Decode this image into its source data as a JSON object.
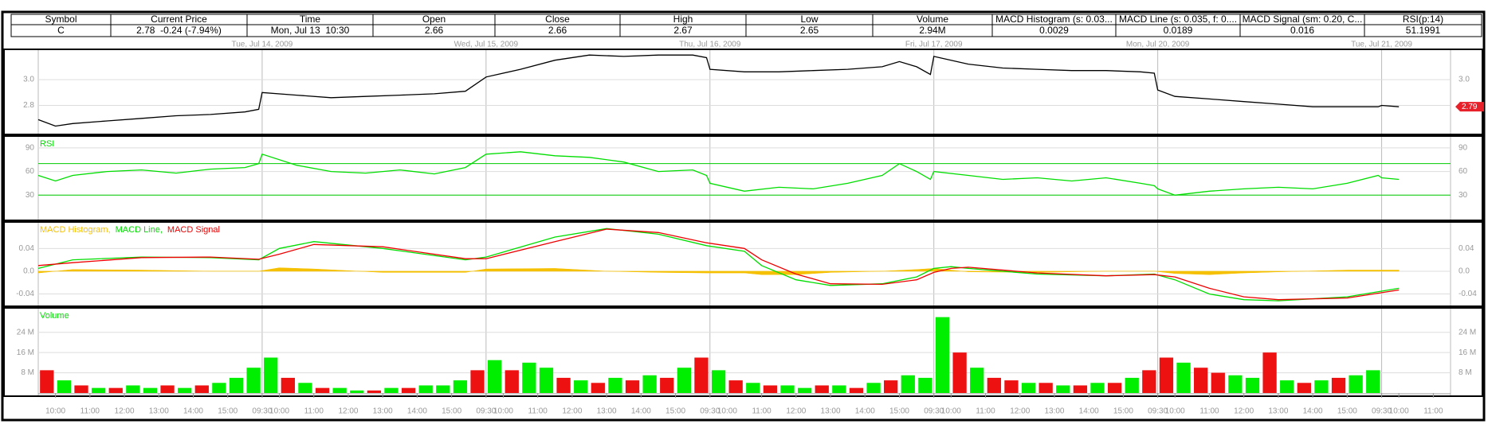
{
  "quote_table": {
    "headers": [
      "Symbol",
      "Current Price",
      "Time",
      "Open",
      "Close",
      "High",
      "Low",
      "Volume",
      "MACD Histogram (s: 0.03...",
      "MACD Line (s: 0.035, f: 0....",
      "MACD Signal (sm: 0.20, C...",
      "RSI(p:14)"
    ],
    "row": [
      "C",
      "2.78  -0.24 (-7.94%)",
      "Mon, Jul 13  10:30",
      "2.66",
      "2.66",
      "2.67",
      "2.65",
      "2.94M",
      "0.0029",
      "0.0189",
      "0.016",
      "51.1991"
    ]
  },
  "chart_data": [
    {
      "type": "line",
      "color": "#000000",
      "xlim": [
        0,
        41
      ],
      "ylim": [
        2.6,
        3.21
      ],
      "yticks": [
        2.8,
        {
          "value": 3,
          "label": "3.0"
        }
      ],
      "xticks": [
        {
          "value": 6.5,
          "label": "Tue, Jul 14, 2009"
        },
        {
          "value": 13,
          "label": "Wed, Jul 15, 2009"
        },
        {
          "value": 19.5,
          "label": "Thu, Jul 16, 2009"
        },
        {
          "value": 26,
          "label": "Fri, Jul 17, 2009"
        },
        {
          "value": 32.5,
          "label": "Mon, Jul 20, 2009"
        },
        {
          "value": 39,
          "label": "Tue, Jul 21, 2009"
        }
      ],
      "last_label": 2.79,
      "last_color": "#e8202a",
      "x": [
        0,
        0.5,
        1,
        2,
        3,
        4,
        5,
        6,
        6.4,
        6.5,
        7.5,
        8.5,
        9.5,
        10.5,
        11.5,
        12.4,
        13,
        14,
        15,
        16,
        17,
        18,
        19,
        19.4,
        19.5,
        20.5,
        21.5,
        22.5,
        23.5,
        24.5,
        25,
        25.5,
        25.9,
        26,
        27,
        28,
        29,
        30,
        31,
        32,
        32.4,
        32.5,
        33,
        34,
        35,
        36,
        37,
        38,
        38.9,
        39,
        39.5
      ],
      "values": [
        2.69,
        2.64,
        2.66,
        2.68,
        2.7,
        2.72,
        2.73,
        2.75,
        2.77,
        2.9,
        2.88,
        2.86,
        2.87,
        2.88,
        2.89,
        2.91,
        3.02,
        3.08,
        3.15,
        3.19,
        3.18,
        3.19,
        3.19,
        3.17,
        3.08,
        3.06,
        3.06,
        3.07,
        3.08,
        3.1,
        3.14,
        3.1,
        3.04,
        3.18,
        3.12,
        3.09,
        3.08,
        3.07,
        3.07,
        3.06,
        3.05,
        2.92,
        2.87,
        2.85,
        2.83,
        2.81,
        2.79,
        2.79,
        2.79,
        2.8,
        2.79
      ]
    },
    {
      "type": "line",
      "title": "RSI",
      "color": "#00dd00",
      "xlim": [
        0,
        41
      ],
      "ylim": [
        2,
        101
      ],
      "yticks": [
        30,
        60,
        90
      ],
      "levels": [
        70,
        30
      ],
      "level_color": "#00cc00",
      "x": [
        0,
        0.5,
        1,
        2,
        3,
        4,
        5,
        6,
        6.4,
        6.5,
        7.5,
        8.5,
        9.5,
        10.5,
        11.5,
        12.4,
        13,
        14,
        15,
        16,
        17,
        18,
        19,
        19.4,
        19.5,
        20.5,
        21.5,
        22.5,
        23.5,
        24.5,
        25,
        25.5,
        25.9,
        26,
        27,
        28,
        29,
        30,
        31,
        32,
        32.4,
        32.5,
        33,
        34,
        35,
        36,
        37,
        38,
        38.9,
        39,
        39.5
      ],
      "values": [
        55,
        48,
        55,
        60,
        62,
        58,
        63,
        65,
        70,
        82,
        68,
        60,
        58,
        62,
        57,
        65,
        82,
        85,
        80,
        78,
        72,
        60,
        62,
        55,
        45,
        35,
        40,
        38,
        45,
        55,
        70,
        60,
        50,
        60,
        55,
        50,
        52,
        48,
        52,
        45,
        42,
        38,
        30,
        35,
        38,
        40,
        38,
        45,
        55,
        52,
        50
      ]
    },
    {
      "type": "line",
      "xlim": [
        0,
        41
      ],
      "ylim": [
        -0.056,
        0.081
      ],
      "yticks": [
        -0.04,
        {
          "value": 0,
          "label": "0.0"
        },
        0.04
      ],
      "x": [
        0,
        1,
        3,
        5,
        6.4,
        7,
        8,
        10,
        12.4,
        13,
        15,
        16.5,
        18,
        19.4,
        20.5,
        21,
        22,
        23,
        24.5,
        25.5,
        26,
        26.5,
        27,
        29,
        31,
        32.4,
        33,
        34,
        35,
        36,
        38,
        39.5
      ],
      "series": [
        {
          "name": "MACD Histogram,",
          "color": "#f5c000",
          "style": "area",
          "values": [
            -0.003,
            0.003,
            0.002,
            0,
            0,
            0.006,
            0.004,
            -0.002,
            -0.002,
            0.004,
            0.005,
            0,
            -0.002,
            -0.003,
            -0.003,
            -0.006,
            -0.006,
            -0.002,
            0,
            0.003,
            0.005,
            0.002,
            -0.001,
            -0.002,
            0,
            0,
            -0.004,
            -0.006,
            -0.003,
            -0.001,
            0.002,
            0.002
          ]
        },
        {
          "name": "MACD Line,",
          "color": "#00dd00",
          "values": [
            0.005,
            0.02,
            0.025,
            0.024,
            0.02,
            0.04,
            0.052,
            0.04,
            0.02,
            0.025,
            0.06,
            0.075,
            0.065,
            0.045,
            0.035,
            0.01,
            -0.015,
            -0.025,
            -0.022,
            -0.01,
            0.005,
            0.008,
            0.005,
            -0.005,
            -0.008,
            -0.005,
            -0.015,
            -0.04,
            -0.05,
            -0.052,
            -0.045,
            -0.03
          ]
        },
        {
          "name": "MACD Signal",
          "color": "#ee0000",
          "values": [
            0.01,
            0.015,
            0.024,
            0.025,
            0.021,
            0.03,
            0.047,
            0.043,
            0.022,
            0.022,
            0.052,
            0.074,
            0.068,
            0.05,
            0.04,
            0.02,
            -0.005,
            -0.022,
            -0.023,
            -0.015,
            -0.002,
            0.005,
            0.007,
            -0.003,
            -0.008,
            -0.006,
            -0.01,
            -0.03,
            -0.045,
            -0.05,
            -0.047,
            -0.033
          ]
        }
      ]
    },
    {
      "type": "bar",
      "title": "Volume",
      "title_color": "#00dd00",
      "xlim": [
        0,
        41
      ],
      "ylim": [
        0,
        32.4
      ],
      "yticks": [
        {
          "value": 8,
          "label": "8 M"
        },
        {
          "value": 16,
          "label": "16 M"
        },
        {
          "value": 24,
          "label": "24 M"
        }
      ],
      "up_color": "#00ee00",
      "down_color": "#ee1111",
      "xticks": [
        {
          "value": 0.5,
          "label": "10:00"
        },
        {
          "value": 1.5,
          "label": "11:00"
        },
        {
          "value": 2.5,
          "label": "12:00"
        },
        {
          "value": 3.5,
          "label": "13:00"
        },
        {
          "value": 4.5,
          "label": "14:00"
        },
        {
          "value": 5.5,
          "label": "15:00"
        },
        {
          "value": 6.5,
          "label": "09:30"
        },
        {
          "value": 7,
          "label": "10:00"
        },
        {
          "value": 8,
          "label": "11:00"
        },
        {
          "value": 9,
          "label": "12:00"
        },
        {
          "value": 10,
          "label": "13:00"
        },
        {
          "value": 11,
          "label": "14:00"
        },
        {
          "value": 12,
          "label": "15:00"
        },
        {
          "value": 13,
          "label": "09:30"
        },
        {
          "value": 13.5,
          "label": "10:00"
        },
        {
          "value": 14.5,
          "label": "11:00"
        },
        {
          "value": 15.5,
          "label": "12:00"
        },
        {
          "value": 16.5,
          "label": "13:00"
        },
        {
          "value": 17.5,
          "label": "14:00"
        },
        {
          "value": 18.5,
          "label": "15:00"
        },
        {
          "value": 19.5,
          "label": "09:30"
        },
        {
          "value": 20,
          "label": "10:00"
        },
        {
          "value": 21,
          "label": "11:00"
        },
        {
          "value": 22,
          "label": "12:00"
        },
        {
          "value": 23,
          "label": "13:00"
        },
        {
          "value": 24,
          "label": "14:00"
        },
        {
          "value": 25,
          "label": "15:00"
        },
        {
          "value": 26,
          "label": "09:30"
        },
        {
          "value": 26.5,
          "label": "10:00"
        },
        {
          "value": 27.5,
          "label": "11:00"
        },
        {
          "value": 28.5,
          "label": "12:00"
        },
        {
          "value": 29.5,
          "label": "13:00"
        },
        {
          "value": 30.5,
          "label": "14:00"
        },
        {
          "value": 31.5,
          "label": "15:00"
        },
        {
          "value": 32.5,
          "label": "09:30"
        },
        {
          "value": 33,
          "label": "10:00"
        },
        {
          "value": 34,
          "label": "11:00"
        },
        {
          "value": 35,
          "label": "12:00"
        },
        {
          "value": 36,
          "label": "13:00"
        },
        {
          "value": 37,
          "label": "14:00"
        },
        {
          "value": 38,
          "label": "15:00"
        },
        {
          "value": 39,
          "label": "09:30"
        },
        {
          "value": 39.5,
          "label": "10:00"
        },
        {
          "value": 40.5,
          "label": "11:00"
        }
      ],
      "x": [
        0.25,
        0.75,
        1.25,
        1.75,
        2.25,
        2.75,
        3.25,
        3.75,
        4.25,
        4.75,
        5.25,
        5.75,
        6.25,
        6.75,
        7.25,
        7.75,
        8.25,
        8.75,
        9.25,
        9.75,
        10.25,
        10.75,
        11.25,
        11.75,
        12.25,
        12.75,
        13.25,
        13.75,
        14.25,
        14.75,
        15.25,
        15.75,
        16.25,
        16.75,
        17.25,
        17.75,
        18.25,
        18.75,
        19.25,
        19.75,
        20.25,
        20.75,
        21.25,
        21.75,
        22.25,
        22.75,
        23.25,
        23.75,
        24.25,
        24.75,
        25.25,
        25.75,
        26.25,
        26.75,
        27.25,
        27.75,
        28.25,
        28.75,
        29.25,
        29.75,
        30.25,
        30.75,
        31.25,
        31.75,
        32.25,
        32.75,
        33.25,
        33.75,
        34.25,
        34.75,
        35.25,
        35.75,
        36.25,
        36.75,
        37.25,
        37.75,
        38.25,
        38.75
      ],
      "values": [
        9,
        5,
        3,
        2,
        2,
        3,
        2,
        3,
        2,
        3,
        4,
        6,
        10,
        14,
        6,
        4,
        2,
        2,
        1,
        1,
        2,
        2,
        3,
        3,
        5,
        9,
        13,
        9,
        12,
        10,
        6,
        5,
        4,
        6,
        5,
        7,
        6,
        10,
        14,
        9,
        5,
        4,
        3,
        3,
        2,
        3,
        3,
        2,
        4,
        5,
        7,
        6,
        30,
        16,
        10,
        6,
        5,
        4,
        4,
        3,
        3,
        4,
        4,
        6,
        9,
        14,
        12,
        10,
        8,
        7,
        6,
        16,
        5,
        4,
        5,
        6,
        7,
        9
      ],
      "up": [
        false,
        true,
        false,
        true,
        false,
        true,
        true,
        false,
        true,
        false,
        true,
        true,
        true,
        true,
        false,
        true,
        false,
        true,
        true,
        false,
        true,
        false,
        true,
        true,
        true,
        false,
        true,
        false,
        true,
        true,
        false,
        true,
        false,
        true,
        false,
        true,
        false,
        true,
        false,
        true,
        false,
        true,
        false,
        true,
        true,
        false,
        true,
        false,
        true,
        false,
        true,
        true,
        true,
        false,
        true,
        false,
        false,
        true,
        false,
        true,
        false,
        true,
        false,
        true,
        false,
        false,
        true,
        false,
        false,
        true,
        true,
        false,
        true,
        false,
        true,
        false,
        true,
        true
      ]
    }
  ]
}
